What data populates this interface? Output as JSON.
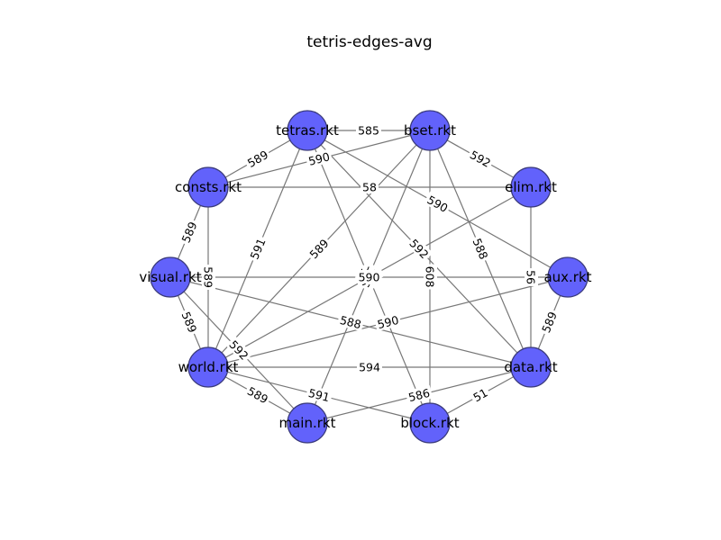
{
  "title": "tetris-edges-avg",
  "colors": {
    "node": "#6262fb",
    "edge": "#777777"
  },
  "nodes": [
    {
      "id": "tetras",
      "label": "tetras.rkt"
    },
    {
      "id": "bset",
      "label": "bset.rkt"
    },
    {
      "id": "elim",
      "label": "elim.rkt"
    },
    {
      "id": "aux",
      "label": "aux.rkt"
    },
    {
      "id": "data",
      "label": "data.rkt"
    },
    {
      "id": "block",
      "label": "block.rkt"
    },
    {
      "id": "main",
      "label": "main.rkt"
    },
    {
      "id": "world",
      "label": "world.rkt"
    },
    {
      "id": "visual",
      "label": "visual.rkt"
    },
    {
      "id": "consts",
      "label": "consts.rkt"
    }
  ],
  "edges": [
    {
      "source": "tetras",
      "target": "bset",
      "weight": "585"
    },
    {
      "source": "tetras",
      "target": "consts",
      "weight": "589"
    },
    {
      "source": "tetras",
      "target": "aux",
      "weight": "590"
    },
    {
      "source": "tetras",
      "target": "world",
      "weight": "591"
    },
    {
      "source": "tetras",
      "target": "block",
      "weight": "591"
    },
    {
      "source": "tetras",
      "target": "data",
      "weight": "592"
    },
    {
      "source": "bset",
      "target": "elim",
      "weight": "592"
    },
    {
      "source": "bset",
      "target": "consts",
      "weight": "590"
    },
    {
      "source": "bset",
      "target": "world",
      "weight": "589"
    },
    {
      "source": "bset",
      "target": "main",
      "weight": "585"
    },
    {
      "source": "bset",
      "target": "block",
      "weight": "608"
    },
    {
      "source": "bset",
      "target": "data",
      "weight": "588"
    },
    {
      "source": "consts",
      "target": "elim",
      "weight": "58"
    },
    {
      "source": "consts",
      "target": "visual",
      "weight": "589"
    },
    {
      "source": "consts",
      "target": "world",
      "weight": "589"
    },
    {
      "source": "elim",
      "target": "world",
      "weight": "591"
    },
    {
      "source": "elim",
      "target": "data",
      "weight": "56"
    },
    {
      "source": "visual",
      "target": "aux",
      "weight": "590"
    },
    {
      "source": "visual",
      "target": "data",
      "weight": "588"
    },
    {
      "source": "visual",
      "target": "world",
      "weight": "589"
    },
    {
      "source": "visual",
      "target": "main",
      "weight": "592"
    },
    {
      "source": "world",
      "target": "aux",
      "weight": "590"
    },
    {
      "source": "world",
      "target": "data",
      "weight": "594"
    },
    {
      "source": "world",
      "target": "main",
      "weight": "589"
    },
    {
      "source": "world",
      "target": "block",
      "weight": "591"
    },
    {
      "source": "aux",
      "target": "data",
      "weight": "589"
    },
    {
      "source": "main",
      "target": "data",
      "weight": "586"
    },
    {
      "source": "block",
      "target": "data",
      "weight": "51"
    }
  ]
}
